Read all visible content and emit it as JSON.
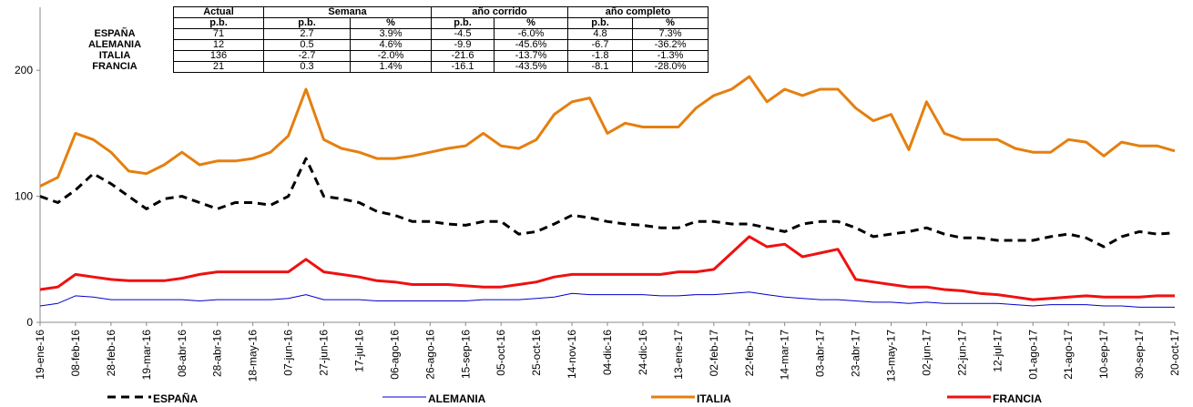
{
  "chart_data": {
    "type": "line",
    "categories": [
      "19-ene-16",
      null,
      "08-feb-16",
      null,
      "28-feb-16",
      null,
      "19-mar-16",
      null,
      "08-abr-16",
      null,
      "28-abr-16",
      null,
      "18-may-16",
      null,
      "07-jun-16",
      null,
      "27-jun-16",
      null,
      "17-jul-16",
      null,
      "06-ago-16",
      null,
      "26-ago-16",
      null,
      "15-sep-16",
      null,
      "05-oct-16",
      null,
      "25-oct-16",
      null,
      "14-nov-16",
      null,
      "04-dic-16",
      null,
      "24-dic-16",
      null,
      "13-ene-17",
      null,
      "02-feb-17",
      null,
      "22-feb-17",
      null,
      "14-mar-17",
      null,
      "03-abr-17",
      null,
      "23-abr-17",
      null,
      "13-may-17",
      null,
      "02-jun-17",
      null,
      "22-jun-17",
      null,
      "12-jul-17",
      null,
      "01-ago-17",
      null,
      "21-ago-17",
      null,
      "10-sep-17",
      null,
      "30-sep-17",
      null,
      "20-oct-17"
    ],
    "series": [
      {
        "name": "ESPAÑA",
        "color": "#000000",
        "style": "dashed",
        "width": 3,
        "values": [
          100,
          95,
          105,
          118,
          110,
          100,
          90,
          98,
          100,
          95,
          90,
          95,
          95,
          93,
          100,
          130,
          100,
          98,
          95,
          88,
          85,
          80,
          80,
          78,
          77,
          80,
          80,
          70,
          72,
          78,
          85,
          83,
          80,
          78,
          77,
          75,
          75,
          80,
          80,
          78,
          78,
          75,
          72,
          78,
          80,
          80,
          75,
          68,
          70,
          72,
          75,
          70,
          67,
          67,
          65,
          65,
          65,
          68,
          70,
          67,
          60,
          68,
          72,
          70,
          71
        ]
      },
      {
        "name": "ALEMANIA",
        "color": "#0000cc",
        "style": "solid",
        "width": 1,
        "values": [
          13,
          15,
          21,
          20,
          18,
          18,
          18,
          18,
          18,
          17,
          18,
          18,
          18,
          18,
          19,
          22,
          18,
          18,
          18,
          17,
          17,
          17,
          17,
          17,
          17,
          18,
          18,
          18,
          19,
          20,
          23,
          22,
          22,
          22,
          22,
          21,
          21,
          22,
          22,
          23,
          24,
          22,
          20,
          19,
          18,
          18,
          17,
          16,
          16,
          15,
          16,
          15,
          15,
          15,
          15,
          14,
          13,
          14,
          14,
          14,
          13,
          13,
          12,
          12,
          12
        ]
      },
      {
        "name": "ITALIA",
        "color": "#e57f0f",
        "style": "solid",
        "width": 3,
        "values": [
          108,
          115,
          150,
          145,
          135,
          120,
          118,
          125,
          135,
          125,
          128,
          128,
          130,
          135,
          148,
          185,
          145,
          138,
          135,
          130,
          130,
          132,
          135,
          138,
          140,
          150,
          140,
          138,
          145,
          165,
          175,
          178,
          150,
          158,
          155,
          155,
          155,
          170,
          180,
          185,
          195,
          175,
          185,
          180,
          185,
          185,
          170,
          160,
          165,
          137,
          175,
          150,
          145,
          145,
          145,
          138,
          135,
          135,
          145,
          143,
          132,
          143,
          140,
          140,
          136
        ]
      },
      {
        "name": "FRANCIA",
        "color": "#ee1111",
        "style": "solid",
        "width": 3,
        "values": [
          26,
          28,
          38,
          36,
          34,
          33,
          33,
          33,
          35,
          38,
          40,
          40,
          40,
          40,
          40,
          50,
          40,
          38,
          36,
          33,
          32,
          30,
          30,
          30,
          29,
          28,
          28,
          30,
          32,
          36,
          38,
          38,
          38,
          38,
          38,
          38,
          40,
          40,
          42,
          55,
          68,
          60,
          62,
          52,
          55,
          58,
          34,
          32,
          30,
          28,
          28,
          26,
          25,
          23,
          22,
          20,
          18,
          19,
          20,
          21,
          20,
          20,
          20,
          21,
          21
        ]
      }
    ],
    "ylim": [
      0,
      250
    ],
    "yticks": [
      0,
      100,
      200
    ],
    "grid": false,
    "legend": "bottom"
  },
  "table": {
    "groups": [
      "Actual",
      "Semana",
      "año corrido",
      "año completo"
    ],
    "subheaders": [
      "p.b.",
      "p.b.",
      "%",
      "p.b.",
      "%",
      "p.b.",
      "%"
    ],
    "rows": [
      [
        "ESPAÑA",
        "71",
        "2.7",
        "3.9%",
        "-4.5",
        "-6.0%",
        "4.8",
        "7.3%"
      ],
      [
        "ALEMANIA",
        "12",
        "0.5",
        "4.6%",
        "-9.9",
        "-45.6%",
        "-6.7",
        "-36.2%"
      ],
      [
        "ITALIA",
        "136",
        "-2.7",
        "-2.0%",
        "-21.6",
        "-13.7%",
        "-1.8",
        "-1.3%"
      ],
      [
        "FRANCIA",
        "21",
        "0.3",
        "1.4%",
        "-16.1",
        "-43.5%",
        "-8.1",
        "-28.0%"
      ]
    ]
  }
}
